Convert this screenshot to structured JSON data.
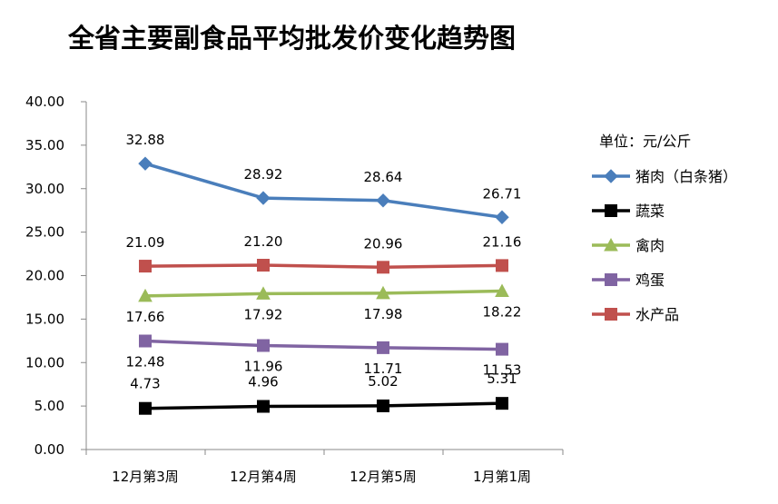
{
  "chart_data": {
    "type": "line",
    "title": "全省主要副食品平均批发价变化趋势图",
    "unit_note": "单位：元/公斤",
    "categories": [
      "12月第3周",
      "12月第4周",
      "12月第5周",
      "1月第1周"
    ],
    "ylim": [
      0,
      40
    ],
    "yticks": [
      "0.00",
      "5.00",
      "10.00",
      "15.00",
      "20.00",
      "25.00",
      "30.00",
      "35.00",
      "40.00"
    ],
    "grid": false,
    "legend_position": "right",
    "series": [
      {
        "name": "猪肉（白条猪）",
        "values": [
          32.88,
          28.92,
          28.64,
          26.71
        ],
        "labels": [
          "32.88",
          "28.92",
          "28.64",
          "26.71"
        ],
        "color": "#4a7ebb",
        "marker": "diamond"
      },
      {
        "name": "蔬菜",
        "values": [
          4.73,
          4.96,
          5.02,
          5.31
        ],
        "labels": [
          "4.73",
          "4.96",
          "5.02",
          "5.31"
        ],
        "color": "#000000",
        "marker": "square"
      },
      {
        "name": "禽肉",
        "values": [
          17.66,
          17.92,
          17.98,
          18.22
        ],
        "labels": [
          "17.66",
          "17.92",
          "17.98",
          "18.22"
        ],
        "color": "#9bbb59",
        "marker": "triangle"
      },
      {
        "name": "鸡蛋",
        "values": [
          12.48,
          11.96,
          11.71,
          11.53
        ],
        "labels": [
          "12.48",
          "11.96",
          "11.71",
          "11.53"
        ],
        "color": "#8064a2",
        "marker": "square"
      },
      {
        "name": "水产品",
        "values": [
          21.09,
          21.2,
          20.96,
          21.16
        ],
        "labels": [
          "21.09",
          "21.20",
          "20.96",
          "21.16"
        ],
        "color": "#c0504d",
        "marker": "square"
      }
    ]
  }
}
